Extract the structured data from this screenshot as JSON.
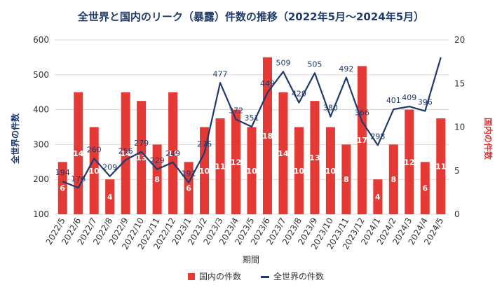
{
  "chart_data": {
    "type": "bar",
    "title": "全世界と国内のリーク（暴露）件数の推移（2022年5月〜2024年5月）",
    "xlabel": "期間",
    "ylabel_left": "全世界の件数",
    "ylabel_right": "国内の件数",
    "categories": [
      "2022/5",
      "2022/6",
      "2022/7",
      "2022/8",
      "2022/9",
      "2022/10",
      "2022/11",
      "2022/12",
      "2023/1",
      "2023/2",
      "2023/3",
      "2023/4",
      "2023/5",
      "2023/6",
      "2023/7",
      "2023/8",
      "2023/9",
      "2023/10",
      "2023/11",
      "2023/12",
      "2024/1",
      "2024/2",
      "2024/3",
      "2024/4",
      "2024/5"
    ],
    "left_axis": {
      "ylim": [
        100,
        600
      ],
      "ticks": [
        "100",
        "200",
        "300",
        "400",
        "500",
        "600"
      ]
    },
    "right_axis": {
      "ylim": [
        0,
        20
      ],
      "ticks": [
        "0",
        "5",
        "10",
        "15",
        "20"
      ]
    },
    "grid": true,
    "legend_position": "bottom",
    "series": [
      {
        "name": "国内の件数",
        "kind": "bar",
        "axis": "right",
        "color": "#e53935",
        "values": [
          6,
          14,
          10,
          4,
          14,
          13,
          8,
          14,
          6,
          10,
          11,
          12,
          10,
          18,
          14,
          10,
          13,
          10,
          8,
          17,
          4,
          8,
          12,
          6,
          11
        ],
        "labels": [
          "6",
          "14",
          "10",
          "4",
          "14",
          "13",
          "8",
          "14",
          "6",
          "10",
          "11",
          "12",
          "10",
          "18",
          "14",
          "10",
          "13",
          "10",
          "8",
          "17",
          "4",
          "8",
          "12",
          "6",
          "11"
        ]
      },
      {
        "name": "全世界の件数",
        "kind": "line",
        "axis": "left",
        "color": "#1f3a6b",
        "values": [
          194,
          176,
          260,
          209,
          256,
          279,
          229,
          249,
          191,
          276,
          477,
          372,
          351,
          449,
          509,
          420,
          505,
          380,
          492,
          366,
          298,
          401,
          409,
          396,
          550
        ],
        "labels": [
          "194",
          "176",
          "260",
          "209",
          "256",
          "279",
          "229",
          "249",
          "191",
          "276",
          "477",
          "372",
          "351",
          "449",
          "509",
          "420",
          "505",
          "380",
          "492",
          "366",
          "298",
          "401",
          "409",
          "396",
          ""
        ]
      }
    ]
  }
}
